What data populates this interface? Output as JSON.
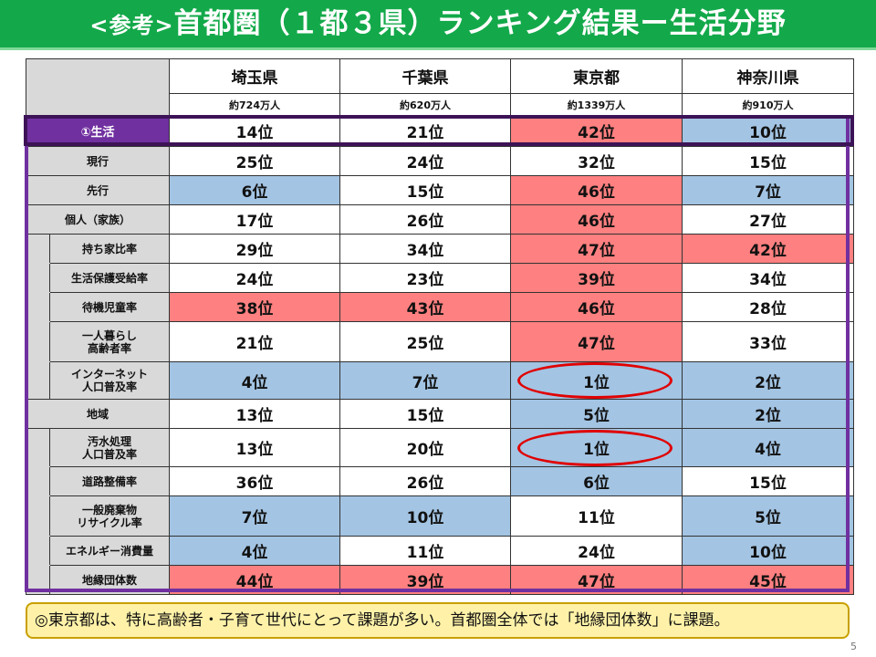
{
  "slide": {
    "title_prefix": "<参考>",
    "title_main": "首都圏（１都３県）ランキング結果ー生活分野",
    "page_number": "5"
  },
  "table": {
    "prefectures": [
      {
        "name": "埼玉県",
        "population": "約724万人"
      },
      {
        "name": "千葉県",
        "population": "約620万人"
      },
      {
        "name": "東京都",
        "population": "約1339万人"
      },
      {
        "name": "神奈川県",
        "population": "約910万人"
      }
    ],
    "rows": [
      {
        "label": "①生活",
        "cells": [
          {
            "text": "14位",
            "color": "white"
          },
          {
            "text": "21位",
            "color": "white"
          },
          {
            "text": "42位",
            "color": "red"
          },
          {
            "text": "10位",
            "color": "blue"
          }
        ]
      },
      {
        "label": "現行",
        "cells": [
          {
            "text": "25位",
            "color": "white"
          },
          {
            "text": "24位",
            "color": "white"
          },
          {
            "text": "32位",
            "color": "white"
          },
          {
            "text": "15位",
            "color": "white"
          }
        ]
      },
      {
        "label": "先行",
        "cells": [
          {
            "text": "6位",
            "color": "blue"
          },
          {
            "text": "15位",
            "color": "white"
          },
          {
            "text": "46位",
            "color": "red"
          },
          {
            "text": "7位",
            "color": "blue"
          }
        ]
      },
      {
        "label": "個人（家族）",
        "cells": [
          {
            "text": "17位",
            "color": "white"
          },
          {
            "text": "26位",
            "color": "white"
          },
          {
            "text": "46位",
            "color": "red"
          },
          {
            "text": "27位",
            "color": "white"
          }
        ]
      },
      {
        "label": "持ち家比率",
        "cells": [
          {
            "text": "29位",
            "color": "white"
          },
          {
            "text": "34位",
            "color": "white"
          },
          {
            "text": "47位",
            "color": "red"
          },
          {
            "text": "42位",
            "color": "red"
          }
        ]
      },
      {
        "label": "生活保護受給率",
        "cells": [
          {
            "text": "24位",
            "color": "white"
          },
          {
            "text": "23位",
            "color": "white"
          },
          {
            "text": "39位",
            "color": "red"
          },
          {
            "text": "34位",
            "color": "white"
          }
        ]
      },
      {
        "label": "待機児童率",
        "cells": [
          {
            "text": "38位",
            "color": "red"
          },
          {
            "text": "43位",
            "color": "red"
          },
          {
            "text": "46位",
            "color": "red"
          },
          {
            "text": "28位",
            "color": "white"
          }
        ]
      },
      {
        "label_line1": "一人暮らし",
        "label_line2": "高齢者率",
        "cells": [
          {
            "text": "21位",
            "color": "white"
          },
          {
            "text": "25位",
            "color": "white"
          },
          {
            "text": "47位",
            "color": "red"
          },
          {
            "text": "33位",
            "color": "white"
          }
        ]
      },
      {
        "label_line1": "インターネット",
        "label_line2": "人口普及率",
        "cells": [
          {
            "text": "4位",
            "color": "blue"
          },
          {
            "text": "7位",
            "color": "blue"
          },
          {
            "text": "1位",
            "color": "blue"
          },
          {
            "text": "2位",
            "color": "blue"
          }
        ]
      },
      {
        "label": "地域",
        "cells": [
          {
            "text": "13位",
            "color": "white"
          },
          {
            "text": "15位",
            "color": "white"
          },
          {
            "text": "5位",
            "color": "blue"
          },
          {
            "text": "2位",
            "color": "blue"
          }
        ]
      },
      {
        "label_line1": "汚水処理",
        "label_line2": "人口普及率",
        "cells": [
          {
            "text": "13位",
            "color": "white"
          },
          {
            "text": "20位",
            "color": "white"
          },
          {
            "text": "1位",
            "color": "blue"
          },
          {
            "text": "4位",
            "color": "blue"
          }
        ]
      },
      {
        "label": "道路整備率",
        "cells": [
          {
            "text": "36位",
            "color": "white"
          },
          {
            "text": "26位",
            "color": "white"
          },
          {
            "text": "6位",
            "color": "blue"
          },
          {
            "text": "15位",
            "color": "white"
          }
        ]
      },
      {
        "label_line1": "一般廃棄物",
        "label_line2": "リサイクル率",
        "cells": [
          {
            "text": "7位",
            "color": "blue"
          },
          {
            "text": "10位",
            "color": "blue"
          },
          {
            "text": "11位",
            "color": "white"
          },
          {
            "text": "5位",
            "color": "blue"
          }
        ]
      },
      {
        "label": "エネルギー消費量",
        "cells": [
          {
            "text": "4位",
            "color": "blue"
          },
          {
            "text": "11位",
            "color": "white"
          },
          {
            "text": "24位",
            "color": "white"
          },
          {
            "text": "10位",
            "color": "blue"
          }
        ]
      },
      {
        "label": "地縁団体数",
        "cells": [
          {
            "text": "44位",
            "color": "red"
          },
          {
            "text": "39位",
            "color": "red"
          },
          {
            "text": "47位",
            "color": "red"
          },
          {
            "text": "45位",
            "color": "red"
          }
        ]
      }
    ]
  },
  "colors": {
    "red": "#ff8080",
    "blue": "#a3c4e3",
    "white": "#ffffff",
    "header_green": "#13a94a",
    "frame_purple": "#7030a0"
  },
  "note": {
    "text": "◎東京都は、特に高齢者・子育て世代にとって課題が多い。首都圏全体では「地縁団体数」に課題。"
  }
}
